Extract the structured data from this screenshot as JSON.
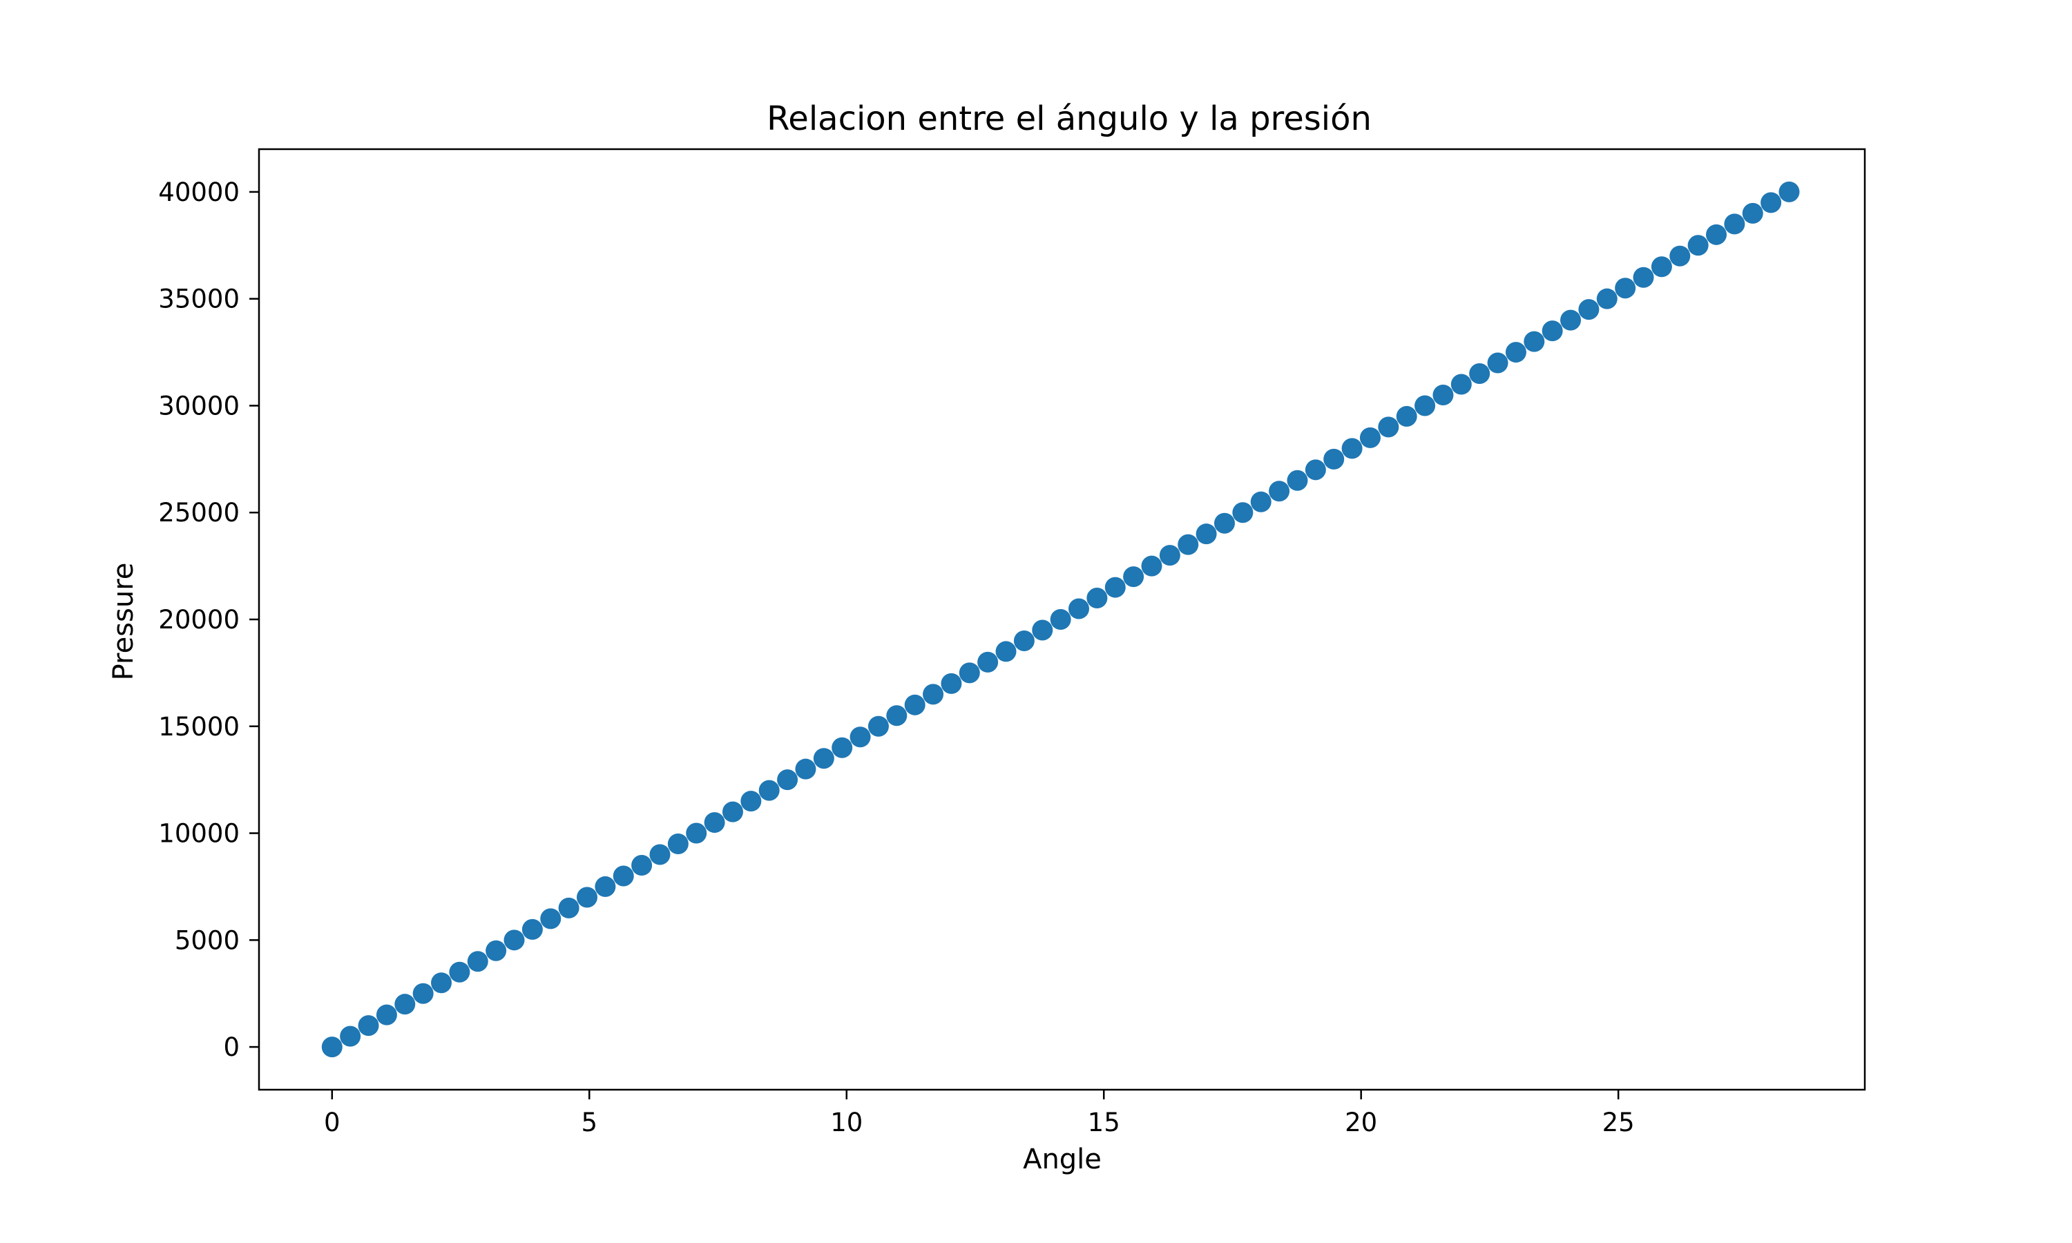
{
  "chart_data": {
    "type": "scatter",
    "title": "Relacion entre el ángulo y la presión",
    "xlabel": "Angle",
    "ylabel": "Pressure",
    "xlim": [
      -1.42,
      29.79
    ],
    "ylim": [
      -2000,
      42000
    ],
    "xticks": [
      0,
      5,
      10,
      15,
      20,
      25
    ],
    "yticks": [
      0,
      5000,
      10000,
      15000,
      20000,
      25000,
      30000,
      35000,
      40000
    ],
    "grid": false,
    "legend": "none",
    "marker_color": "#1f77b4",
    "series": [
      {
        "x": [
          0,
          0.354,
          0.708,
          1.062,
          1.416,
          1.77,
          2.124,
          2.478,
          2.832,
          3.186,
          3.54,
          3.894,
          4.248,
          4.602,
          4.956,
          5.31,
          5.664,
          6.018,
          6.372,
          6.726,
          7.08,
          7.434,
          7.788,
          8.142,
          8.496,
          8.85,
          9.204,
          9.558,
          9.912,
          10.266,
          10.62,
          10.974,
          11.328,
          11.682,
          12.036,
          12.39,
          12.744,
          13.098,
          13.452,
          13.806,
          14.16,
          14.514,
          14.868,
          15.222,
          15.576,
          15.93,
          16.284,
          16.638,
          16.992,
          17.346,
          17.7,
          18.054,
          18.408,
          18.762,
          19.116,
          19.47,
          19.824,
          20.178,
          20.532,
          20.886,
          21.24,
          21.594,
          21.948,
          22.302,
          22.656,
          23.01,
          23.364,
          23.718,
          24.072,
          24.426,
          24.78,
          25.134,
          25.488,
          25.842,
          26.196,
          26.55,
          26.904,
          27.258,
          27.612,
          27.966,
          28.32
        ],
        "y": [
          0,
          500,
          1000,
          1500,
          2000,
          2500,
          3000,
          3500,
          4000,
          4500,
          5000,
          5500,
          6000,
          6500,
          7000,
          7500,
          8000,
          8500,
          9000,
          9500,
          10000,
          10500,
          11000,
          11500,
          12000,
          12500,
          13000,
          13500,
          14000,
          14500,
          15000,
          15500,
          16000,
          16500,
          17000,
          17500,
          18000,
          18500,
          19000,
          19500,
          20000,
          20500,
          21000,
          21500,
          22000,
          22500,
          23000,
          23500,
          24000,
          24500,
          25000,
          25500,
          26000,
          26500,
          27000,
          27500,
          28000,
          28500,
          29000,
          29500,
          30000,
          30500,
          31000,
          31500,
          32000,
          32500,
          33000,
          33500,
          34000,
          34500,
          35000,
          35500,
          36000,
          36500,
          37000,
          37500,
          38000,
          38500,
          39000,
          39500,
          40000
        ]
      }
    ]
  }
}
